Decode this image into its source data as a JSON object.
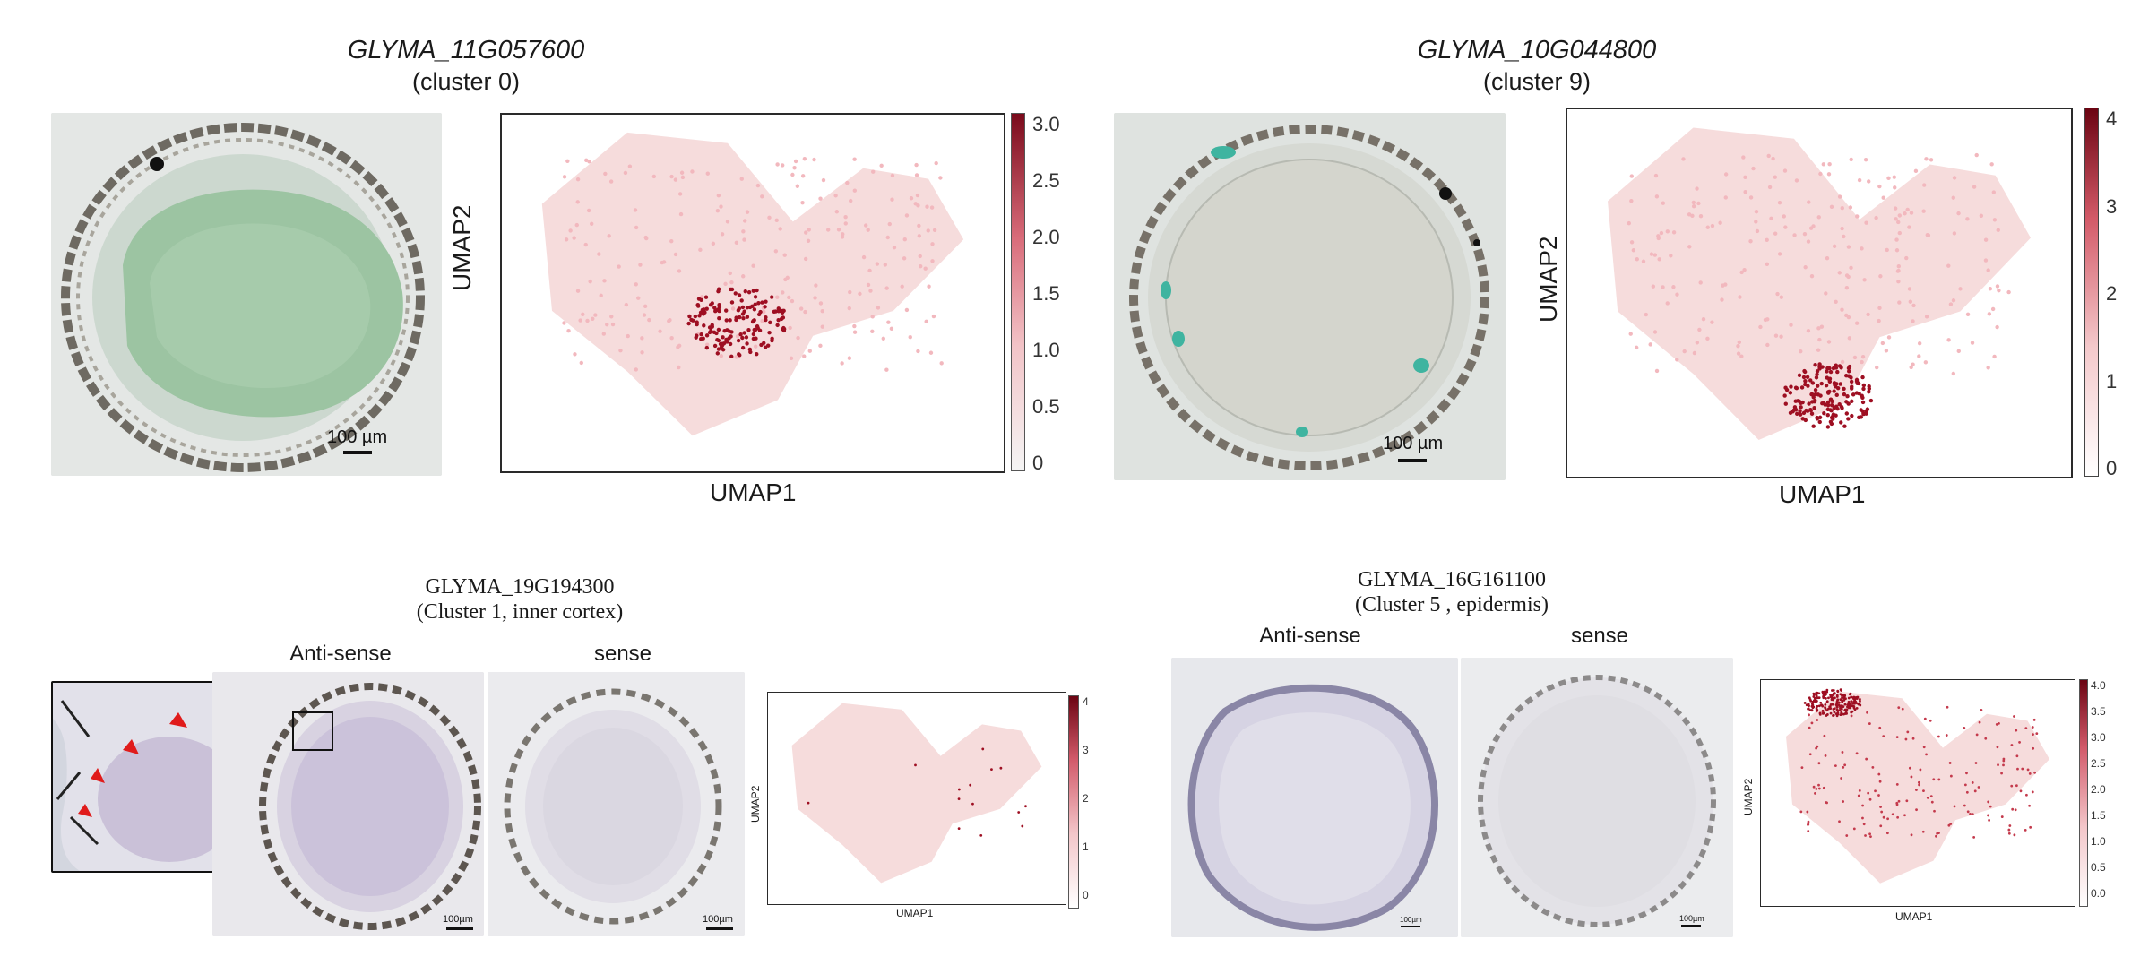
{
  "panels": {
    "top_left": {
      "gene": "GLYMA_11G057600",
      "cluster": "(cluster 0)",
      "scale_label": "100 µm",
      "umap_xlabel": "UMAP1",
      "umap_ylabel": "UMAP2",
      "colorbar_ticks": [
        "3.0",
        "2.5",
        "2.0",
        "1.5",
        "1.0",
        "0.5",
        "0"
      ]
    },
    "top_right": {
      "gene": "GLYMA_10G044800",
      "cluster": "(cluster 9)",
      "scale_label": "100 µm",
      "umap_xlabel": "UMAP1",
      "umap_ylabel": "UMAP2",
      "colorbar_ticks": [
        "4",
        "3",
        "2",
        "1",
        "0"
      ]
    },
    "bottom_left": {
      "gene": "GLYMA_19G194300",
      "cluster": "(Cluster 1, inner cortex)",
      "antisense_label": "Anti-sense",
      "sense_label": "sense",
      "scale_label_1": "100µm",
      "scale_label_2": "100µm",
      "umap_xlabel": "UMAP1",
      "umap_ylabel": "UMAP2",
      "colorbar_ticks": [
        "4",
        "3",
        "2",
        "1",
        "0"
      ]
    },
    "bottom_right": {
      "gene": "GLYMA_16G161100",
      "cluster": "(Cluster 5 , epidermis)",
      "antisense_label": "Anti-sense",
      "sense_label": "sense",
      "scale_label_1": "100µm",
      "scale_label_2": "100µm",
      "umap_xlabel": "UMAP1",
      "umap_ylabel": "UMAP2",
      "colorbar_ticks": [
        "4.0",
        "3.5",
        "3.0",
        "2.5",
        "2.0",
        "1.5",
        "1.0",
        "0.5",
        "0.0"
      ]
    }
  },
  "colors": {
    "umap_background_cells": "#f6dcdc",
    "expression_low": "#f2b8be",
    "expression_high": "#9e0f22",
    "stain_green": "#9cc4a2",
    "stain_purple": "#cfc6df",
    "arrow_red": "#e01b1b"
  }
}
